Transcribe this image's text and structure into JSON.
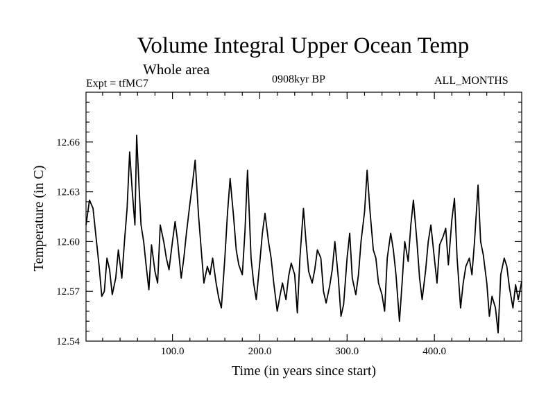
{
  "header": {
    "title": "Volume Integral Upper Ocean Temp",
    "subtitle": "Whole area",
    "expt": "Expt = tfMC7",
    "period": "0908kyr BP",
    "months": "ALL_MONTHS"
  },
  "chart_data": {
    "type": "line",
    "title": "Volume Integral Upper Ocean Temp",
    "subtitle": "Whole area",
    "xlabel": "Time (in years since start)",
    "ylabel": "Temperature (in C)",
    "xlim": [
      1,
      500
    ],
    "ylim": [
      12.54,
      12.69
    ],
    "xticks": [
      100.0,
      200.0,
      300.0,
      400.0
    ],
    "xtick_labels": [
      "100.0",
      "200.0",
      "300.0",
      "400.0"
    ],
    "yticks": [
      12.54,
      12.57,
      12.6,
      12.63,
      12.66
    ],
    "ytick_labels": [
      "12.54",
      "12.57",
      "12.60",
      "12.63",
      "12.66"
    ],
    "line_color": "#000000",
    "series": [
      {
        "name": "tfMC7",
        "x": [
          1,
          5,
          9,
          13,
          16,
          19,
          22,
          25,
          28,
          31,
          35,
          38,
          42,
          45,
          48,
          51,
          54,
          57,
          59,
          62,
          64,
          67,
          70,
          73,
          76,
          80,
          83,
          86,
          90,
          93,
          96,
          100,
          103,
          106,
          110,
          113,
          116,
          120,
          123,
          126,
          130,
          133,
          136,
          140,
          143,
          146,
          150,
          153,
          156,
          160,
          163,
          166,
          170,
          173,
          176,
          180,
          183,
          186,
          190,
          193,
          196,
          200,
          203,
          206,
          210,
          213,
          216,
          220,
          223,
          226,
          230,
          233,
          236,
          240,
          243,
          246,
          250,
          253,
          256,
          260,
          263,
          266,
          270,
          273,
          276,
          280,
          283,
          286,
          290,
          293,
          296,
          300,
          303,
          306,
          310,
          313,
          316,
          320,
          323,
          326,
          330,
          333,
          336,
          340,
          343,
          346,
          350,
          353,
          356,
          360,
          363,
          366,
          370,
          373,
          376,
          380,
          383,
          386,
          390,
          393,
          396,
          400,
          403,
          406,
          410,
          413,
          416,
          420,
          423,
          426,
          430,
          433,
          436,
          440,
          443,
          446,
          450,
          453,
          456,
          460,
          463,
          466,
          470,
          473,
          476,
          480,
          483,
          486,
          490,
          493,
          496,
          500
        ],
        "y": [
          12.61,
          12.625,
          12.62,
          12.6,
          12.585,
          12.567,
          12.57,
          12.59,
          12.583,
          12.568,
          12.578,
          12.595,
          12.578,
          12.6,
          12.62,
          12.654,
          12.63,
          12.61,
          12.664,
          12.63,
          12.61,
          12.6,
          12.585,
          12.571,
          12.598,
          12.582,
          12.575,
          12.61,
          12.6,
          12.59,
          12.583,
          12.6,
          12.612,
          12.6,
          12.578,
          12.59,
          12.605,
          12.623,
          12.635,
          12.649,
          12.615,
          12.595,
          12.575,
          12.585,
          12.58,
          12.59,
          12.575,
          12.566,
          12.56,
          12.59,
          12.617,
          12.638,
          12.615,
          12.595,
          12.586,
          12.58,
          12.606,
          12.643,
          12.59,
          12.575,
          12.565,
          12.587,
          12.605,
          12.617,
          12.6,
          12.59,
          12.575,
          12.558,
          12.567,
          12.575,
          12.565,
          12.579,
          12.587,
          12.58,
          12.557,
          12.59,
          12.62,
          12.6,
          12.582,
          12.575,
          12.583,
          12.595,
          12.59,
          12.57,
          12.563,
          12.573,
          12.583,
          12.6,
          12.578,
          12.555,
          12.562,
          12.59,
          12.605,
          12.578,
          12.568,
          12.58,
          12.6,
          12.618,
          12.643,
          12.62,
          12.595,
          12.59,
          12.575,
          12.568,
          12.558,
          12.59,
          12.605,
          12.595,
          12.58,
          12.552,
          12.575,
          12.6,
          12.588,
          12.61,
          12.625,
          12.6,
          12.578,
          12.565,
          12.583,
          12.6,
          12.61,
          12.59,
          12.575,
          12.598,
          12.603,
          12.608,
          12.586,
          12.613,
          12.626,
          12.59,
          12.56,
          12.575,
          12.585,
          12.59,
          12.58,
          12.6,
          12.634,
          12.6,
          12.592,
          12.575,
          12.555,
          12.567,
          12.56,
          12.545,
          12.58,
          12.59,
          12.585,
          12.572,
          12.56,
          12.574,
          12.565,
          12.576
        ]
      }
    ]
  }
}
